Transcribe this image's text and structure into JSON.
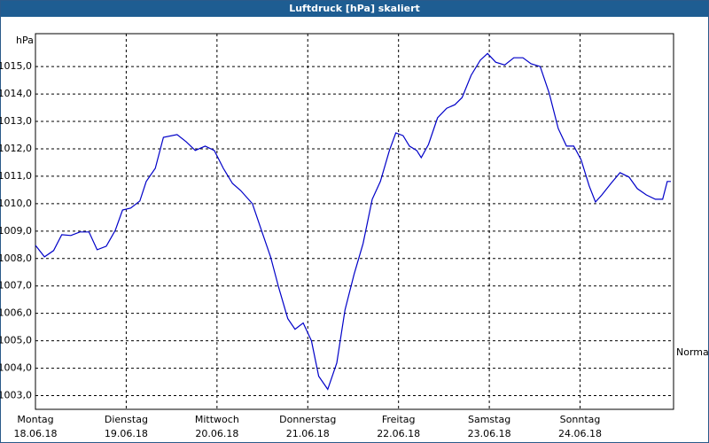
{
  "chart_data": {
    "type": "line",
    "title": "Luftdruck [hPa] skaliert",
    "y_label": "hPa",
    "annotation": "Normal",
    "grid": true,
    "xlim": [
      0,
      7.02
    ],
    "xticks": [
      {
        "value": 0,
        "label": "Montag"
      },
      {
        "value": 1,
        "label": "Dienstag"
      },
      {
        "value": 2,
        "label": "Mittwoch"
      },
      {
        "value": 3,
        "label": "Donnerstag"
      },
      {
        "value": 4,
        "label": "Freitag"
      },
      {
        "value": 5,
        "label": "Samstag"
      },
      {
        "value": 6,
        "label": "Sonntag"
      }
    ],
    "xtick_dates": [
      "18.06.18",
      "19.06.18",
      "20.06.18",
      "21.06.18",
      "22.06.18",
      "23.06.18",
      "24.06.18"
    ],
    "ylim": [
      1002.5,
      1016.2
    ],
    "yticks": [
      {
        "value": 1003,
        "label": "1003,0"
      },
      {
        "value": 1004,
        "label": "1004,0"
      },
      {
        "value": 1005,
        "label": "1005,0"
      },
      {
        "value": 1006,
        "label": "1006,0"
      },
      {
        "value": 1007,
        "label": "1007,0"
      },
      {
        "value": 1008,
        "label": "1008,0"
      },
      {
        "value": 1009,
        "label": "1009,0"
      },
      {
        "value": 1010,
        "label": "1010,0"
      },
      {
        "value": 1011,
        "label": "1011,0"
      },
      {
        "value": 1012,
        "label": "1012,0"
      },
      {
        "value": 1013,
        "label": "1013,0"
      },
      {
        "value": 1014,
        "label": "1014,0"
      },
      {
        "value": 1015,
        "label": "1015,0"
      }
    ],
    "x": [
      0,
      0.1,
      0.2,
      0.29,
      0.39,
      0.49,
      0.59,
      0.68,
      0.78,
      0.88,
      0.96,
      1.05,
      1.15,
      1.22,
      1.32,
      1.41,
      1.56,
      1.66,
      1.76,
      1.87,
      1.97,
      2.07,
      2.17,
      2.26,
      2.39,
      2.49,
      2.59,
      2.68,
      2.78,
      2.86,
      2.95,
      3.04,
      3.12,
      3.22,
      3.32,
      3.41,
      3.51,
      3.61,
      3.71,
      3.8,
      3.9,
      3.97,
      4.05,
      4.12,
      4.2,
      4.25,
      4.33,
      4.43,
      4.53,
      4.62,
      4.7,
      4.8,
      4.9,
      4.98,
      5.07,
      5.17,
      5.27,
      5.37,
      5.46,
      5.56,
      5.66,
      5.76,
      5.85,
      5.93,
      6.01,
      6.1,
      6.17,
      6.24,
      6.34,
      6.44,
      6.54,
      6.63,
      6.73,
      6.83,
      6.91,
      6.96,
      7.0
    ],
    "series": [
      {
        "name": "Luftdruck",
        "color": "#0000c8",
        "values": [
          1008.48,
          1008.06,
          1008.29,
          1008.87,
          1008.84,
          1008.97,
          1008.97,
          1008.32,
          1008.45,
          1009.03,
          1009.77,
          1009.84,
          1010.1,
          1010.81,
          1011.29,
          1012.42,
          1012.52,
          1012.26,
          1011.94,
          1012.1,
          1011.94,
          1011.29,
          1010.74,
          1010.48,
          1010.0,
          1009.03,
          1008.06,
          1006.94,
          1005.81,
          1005.42,
          1005.65,
          1005.0,
          1003.71,
          1003.23,
          1004.19,
          1006.13,
          1007.42,
          1008.55,
          1010.16,
          1010.81,
          1011.94,
          1012.58,
          1012.48,
          1012.1,
          1011.94,
          1011.68,
          1012.16,
          1013.13,
          1013.48,
          1013.61,
          1013.87,
          1014.68,
          1015.23,
          1015.48,
          1015.16,
          1015.06,
          1015.32,
          1015.32,
          1015.1,
          1015.0,
          1014.03,
          1012.74,
          1012.1,
          1012.1,
          1011.61,
          1010.65,
          1010.06,
          1010.32,
          1010.74,
          1011.13,
          1010.97,
          1010.55,
          1010.32,
          1010.16,
          1010.16,
          1010.81,
          1010.81
        ]
      }
    ]
  }
}
